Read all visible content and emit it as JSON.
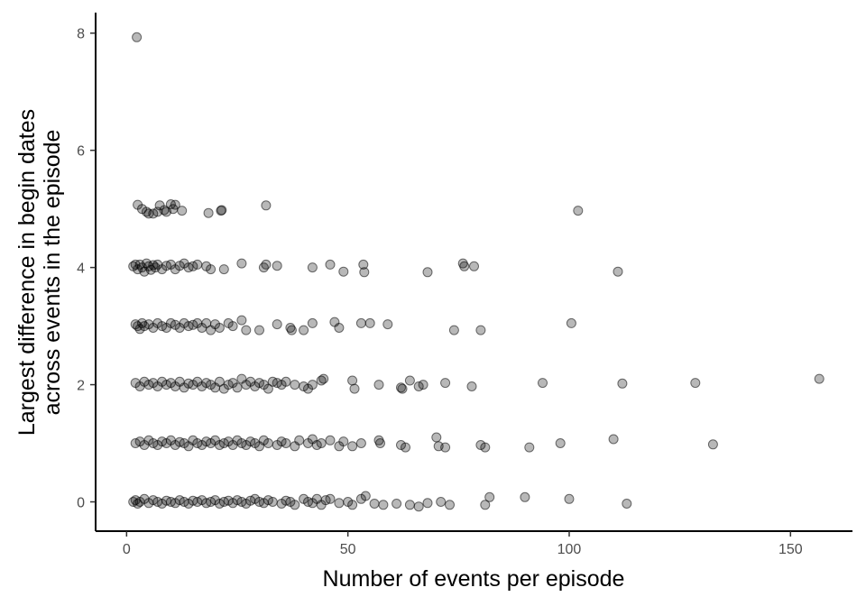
{
  "chart_data": {
    "type": "scatter",
    "title": "",
    "xlabel": "Number of events per episode",
    "ylabel_lines": [
      "Largest difference in begin dates",
      "across events in the episode"
    ],
    "xlim": [
      -7,
      164
    ],
    "ylim": [
      -0.5,
      8.35
    ],
    "x_ticks": [
      0,
      50,
      100,
      150
    ],
    "y_ticks": [
      0,
      2,
      4,
      6,
      8
    ],
    "grid": false,
    "point_color": "#000000",
    "point_opacity": 0.28,
    "points": [
      [
        2.3,
        7.93
      ],
      [
        2.5,
        5.07
      ],
      [
        3.5,
        5.0
      ],
      [
        4.5,
        4.95
      ],
      [
        5.0,
        4.92
      ],
      [
        6.0,
        4.92
      ],
      [
        7.0,
        4.95
      ],
      [
        7.5,
        5.06
      ],
      [
        8.5,
        4.98
      ],
      [
        9.0,
        4.95
      ],
      [
        10.0,
        5.08
      ],
      [
        10.5,
        5.0
      ],
      [
        11.0,
        5.07
      ],
      [
        12.5,
        4.97
      ],
      [
        18.5,
        4.93
      ],
      [
        21.3,
        4.97
      ],
      [
        21.5,
        4.98
      ],
      [
        31.5,
        5.06
      ],
      [
        102.0,
        4.97
      ],
      [
        1.5,
        4.02
      ],
      [
        2.0,
        4.05
      ],
      [
        2.5,
        3.97
      ],
      [
        3.0,
        4.05
      ],
      [
        3.5,
        4.0
      ],
      [
        4.0,
        3.93
      ],
      [
        4.5,
        4.07
      ],
      [
        5.0,
        4.02
      ],
      [
        5.5,
        3.96
      ],
      [
        6.0,
        4.04
      ],
      [
        6.5,
        4.0
      ],
      [
        7.0,
        4.05
      ],
      [
        8.0,
        3.97
      ],
      [
        9.0,
        4.03
      ],
      [
        10.0,
        4.05
      ],
      [
        11.0,
        3.97
      ],
      [
        12.0,
        4.03
      ],
      [
        13.0,
        4.07
      ],
      [
        14.0,
        4.0
      ],
      [
        15.0,
        4.02
      ],
      [
        16.0,
        4.05
      ],
      [
        18.0,
        4.02
      ],
      [
        19.0,
        3.97
      ],
      [
        22.0,
        3.97
      ],
      [
        26.0,
        4.07
      ],
      [
        31.0,
        4.0
      ],
      [
        31.5,
        4.05
      ],
      [
        34.0,
        4.03
      ],
      [
        42.0,
        4.0
      ],
      [
        46.0,
        4.05
      ],
      [
        49.0,
        3.93
      ],
      [
        53.5,
        4.05
      ],
      [
        53.7,
        3.92
      ],
      [
        68.0,
        3.92
      ],
      [
        76.0,
        4.07
      ],
      [
        76.3,
        4.02
      ],
      [
        78.5,
        4.02
      ],
      [
        111.0,
        3.93
      ],
      [
        2.0,
        3.03
      ],
      [
        2.5,
        3.0
      ],
      [
        3.0,
        2.95
      ],
      [
        3.5,
        3.05
      ],
      [
        4.0,
        3.0
      ],
      [
        5.0,
        3.03
      ],
      [
        6.0,
        2.97
      ],
      [
        7.0,
        3.05
      ],
      [
        8.0,
        3.0
      ],
      [
        9.0,
        2.97
      ],
      [
        10.0,
        3.05
      ],
      [
        11.0,
        3.02
      ],
      [
        12.0,
        2.97
      ],
      [
        13.0,
        3.05
      ],
      [
        14.0,
        3.0
      ],
      [
        15.0,
        3.02
      ],
      [
        16.0,
        3.05
      ],
      [
        17.0,
        2.97
      ],
      [
        18.0,
        3.05
      ],
      [
        19.0,
        2.93
      ],
      [
        20.0,
        3.03
      ],
      [
        21.0,
        2.97
      ],
      [
        23.0,
        3.05
      ],
      [
        24.0,
        3.0
      ],
      [
        26.0,
        3.1
      ],
      [
        27.0,
        2.93
      ],
      [
        30.0,
        2.93
      ],
      [
        34.0,
        3.03
      ],
      [
        37.0,
        2.97
      ],
      [
        37.3,
        2.93
      ],
      [
        40.0,
        2.93
      ],
      [
        42.0,
        3.05
      ],
      [
        47.0,
        3.07
      ],
      [
        48.0,
        2.97
      ],
      [
        53.0,
        3.05
      ],
      [
        55.0,
        3.05
      ],
      [
        59.0,
        3.03
      ],
      [
        74.0,
        2.93
      ],
      [
        80.0,
        2.93
      ],
      [
        100.5,
        3.05
      ],
      [
        2.0,
        2.03
      ],
      [
        3.0,
        1.97
      ],
      [
        4.0,
        2.05
      ],
      [
        5.0,
        2.0
      ],
      [
        6.0,
        2.03
      ],
      [
        7.0,
        1.97
      ],
      [
        8.0,
        2.05
      ],
      [
        9.0,
        2.0
      ],
      [
        10.0,
        2.03
      ],
      [
        11.0,
        1.97
      ],
      [
        12.0,
        2.05
      ],
      [
        13.0,
        1.95
      ],
      [
        14.0,
        2.02
      ],
      [
        15.0,
        2.0
      ],
      [
        16.0,
        2.05
      ],
      [
        17.0,
        1.97
      ],
      [
        18.0,
        2.03
      ],
      [
        19.0,
        2.0
      ],
      [
        20.0,
        1.95
      ],
      [
        21.0,
        2.05
      ],
      [
        22.0,
        1.93
      ],
      [
        23.0,
        2.0
      ],
      [
        24.0,
        2.03
      ],
      [
        25.0,
        1.95
      ],
      [
        26.0,
        2.1
      ],
      [
        27.0,
        2.0
      ],
      [
        28.0,
        2.05
      ],
      [
        29.0,
        1.97
      ],
      [
        30.0,
        2.03
      ],
      [
        31.0,
        2.0
      ],
      [
        32.0,
        1.93
      ],
      [
        33.0,
        2.05
      ],
      [
        34.0,
        2.03
      ],
      [
        35.0,
        2.0
      ],
      [
        36.0,
        2.05
      ],
      [
        38.0,
        2.0
      ],
      [
        40.0,
        1.97
      ],
      [
        41.0,
        1.93
      ],
      [
        42.0,
        2.0
      ],
      [
        44.0,
        2.07
      ],
      [
        44.5,
        2.1
      ],
      [
        51.0,
        2.07
      ],
      [
        51.5,
        1.93
      ],
      [
        57.0,
        2.0
      ],
      [
        62.0,
        1.95
      ],
      [
        62.3,
        1.93
      ],
      [
        64.0,
        2.07
      ],
      [
        66.0,
        1.97
      ],
      [
        67.0,
        2.0
      ],
      [
        72.0,
        2.03
      ],
      [
        78.0,
        1.97
      ],
      [
        94.0,
        2.03
      ],
      [
        112.0,
        2.02
      ],
      [
        128.5,
        2.03
      ],
      [
        156.5,
        2.1
      ],
      [
        2.0,
        1.0
      ],
      [
        3.0,
        1.03
      ],
      [
        4.0,
        0.97
      ],
      [
        5.0,
        1.05
      ],
      [
        6.0,
        1.0
      ],
      [
        7.0,
        0.97
      ],
      [
        8.0,
        1.03
      ],
      [
        9.0,
        1.0
      ],
      [
        10.0,
        1.05
      ],
      [
        11.0,
        0.97
      ],
      [
        12.0,
        1.02
      ],
      [
        13.0,
        1.0
      ],
      [
        14.0,
        0.95
      ],
      [
        15.0,
        1.05
      ],
      [
        16.0,
        1.0
      ],
      [
        17.0,
        0.97
      ],
      [
        18.0,
        1.03
      ],
      [
        19.0,
        1.0
      ],
      [
        20.0,
        1.05
      ],
      [
        21.0,
        0.97
      ],
      [
        22.0,
        1.0
      ],
      [
        23.0,
        1.03
      ],
      [
        24.0,
        0.97
      ],
      [
        25.0,
        1.05
      ],
      [
        26.0,
        1.0
      ],
      [
        27.0,
        0.97
      ],
      [
        28.0,
        1.03
      ],
      [
        29.0,
        1.0
      ],
      [
        30.0,
        0.95
      ],
      [
        31.0,
        1.05
      ],
      [
        32.0,
        1.0
      ],
      [
        34.0,
        0.97
      ],
      [
        35.0,
        1.03
      ],
      [
        36.0,
        1.0
      ],
      [
        38.0,
        0.95
      ],
      [
        39.0,
        1.05
      ],
      [
        41.0,
        1.0
      ],
      [
        42.0,
        1.07
      ],
      [
        43.0,
        0.97
      ],
      [
        44.0,
        1.0
      ],
      [
        46.0,
        1.05
      ],
      [
        48.0,
        0.95
      ],
      [
        49.0,
        1.03
      ],
      [
        51.0,
        0.95
      ],
      [
        53.0,
        1.0
      ],
      [
        57.0,
        1.05
      ],
      [
        57.3,
        1.0
      ],
      [
        62.0,
        0.97
      ],
      [
        63.0,
        0.93
      ],
      [
        70.0,
        1.1
      ],
      [
        70.5,
        0.95
      ],
      [
        72.0,
        0.93
      ],
      [
        80.0,
        0.97
      ],
      [
        81.0,
        0.93
      ],
      [
        91.0,
        0.93
      ],
      [
        98.0,
        1.0
      ],
      [
        110.0,
        1.07
      ],
      [
        132.5,
        0.98
      ],
      [
        1.5,
        0.0
      ],
      [
        2.0,
        0.03
      ],
      [
        2.5,
        -0.03
      ],
      [
        3.0,
        0.0
      ],
      [
        4.0,
        0.05
      ],
      [
        5.0,
        -0.02
      ],
      [
        6.0,
        0.03
      ],
      [
        7.0,
        0.0
      ],
      [
        8.0,
        -0.03
      ],
      [
        9.0,
        0.02
      ],
      [
        10.0,
        0.0
      ],
      [
        11.0,
        -0.02
      ],
      [
        12.0,
        0.03
      ],
      [
        13.0,
        0.0
      ],
      [
        14.0,
        -0.03
      ],
      [
        15.0,
        0.02
      ],
      [
        16.0,
        0.0
      ],
      [
        17.0,
        0.03
      ],
      [
        18.0,
        -0.02
      ],
      [
        19.0,
        0.0
      ],
      [
        20.0,
        0.03
      ],
      [
        21.0,
        -0.03
      ],
      [
        22.0,
        0.0
      ],
      [
        23.0,
        0.02
      ],
      [
        24.0,
        -0.02
      ],
      [
        25.0,
        0.03
      ],
      [
        26.0,
        0.0
      ],
      [
        27.0,
        -0.03
      ],
      [
        28.0,
        0.02
      ],
      [
        29.0,
        0.05
      ],
      [
        30.0,
        0.0
      ],
      [
        31.0,
        -0.02
      ],
      [
        32.0,
        0.03
      ],
      [
        33.0,
        0.0
      ],
      [
        35.0,
        -0.03
      ],
      [
        36.0,
        0.02
      ],
      [
        37.0,
        0.0
      ],
      [
        38.0,
        -0.05
      ],
      [
        40.0,
        0.05
      ],
      [
        41.0,
        0.0
      ],
      [
        42.0,
        -0.02
      ],
      [
        43.0,
        0.05
      ],
      [
        44.0,
        -0.05
      ],
      [
        45.0,
        0.03
      ],
      [
        46.0,
        0.05
      ],
      [
        48.0,
        -0.02
      ],
      [
        50.0,
        0.0
      ],
      [
        51.0,
        -0.05
      ],
      [
        53.0,
        0.05
      ],
      [
        54.0,
        0.1
      ],
      [
        56.0,
        -0.03
      ],
      [
        58.0,
        -0.05
      ],
      [
        61.0,
        -0.03
      ],
      [
        64.0,
        -0.05
      ],
      [
        66.0,
        -0.08
      ],
      [
        68.0,
        -0.02
      ],
      [
        71.0,
        0.0
      ],
      [
        73.0,
        -0.05
      ],
      [
        81.0,
        -0.05
      ],
      [
        82.0,
        0.08
      ],
      [
        90.0,
        0.08
      ],
      [
        100.0,
        0.05
      ],
      [
        113.0,
        -0.03
      ]
    ]
  }
}
